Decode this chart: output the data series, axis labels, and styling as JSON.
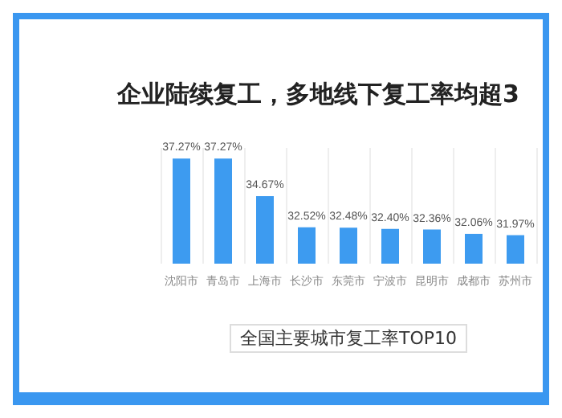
{
  "chart_data": {
    "type": "bar",
    "title": "企业陆续复工，多地线下复工率均超3",
    "xlabel": "全国主要城市复工率TOP10",
    "categories": [
      "沈阳市",
      "青岛市",
      "上海市",
      "长沙市",
      "东莞市",
      "宁波市",
      "昆明市",
      "成都市",
      "苏州市"
    ],
    "values": [
      37.27,
      37.27,
      34.67,
      32.52,
      32.48,
      32.4,
      32.36,
      32.06,
      31.97
    ],
    "value_labels": [
      "37.27%",
      "37.27%",
      "34.67%",
      "32.52%",
      "32.48%",
      "32.40%",
      "32.36%",
      "32.06%",
      "31.97%"
    ],
    "color": "#3d9bf0",
    "ylim": [
      30,
      38
    ],
    "grid": "x"
  }
}
